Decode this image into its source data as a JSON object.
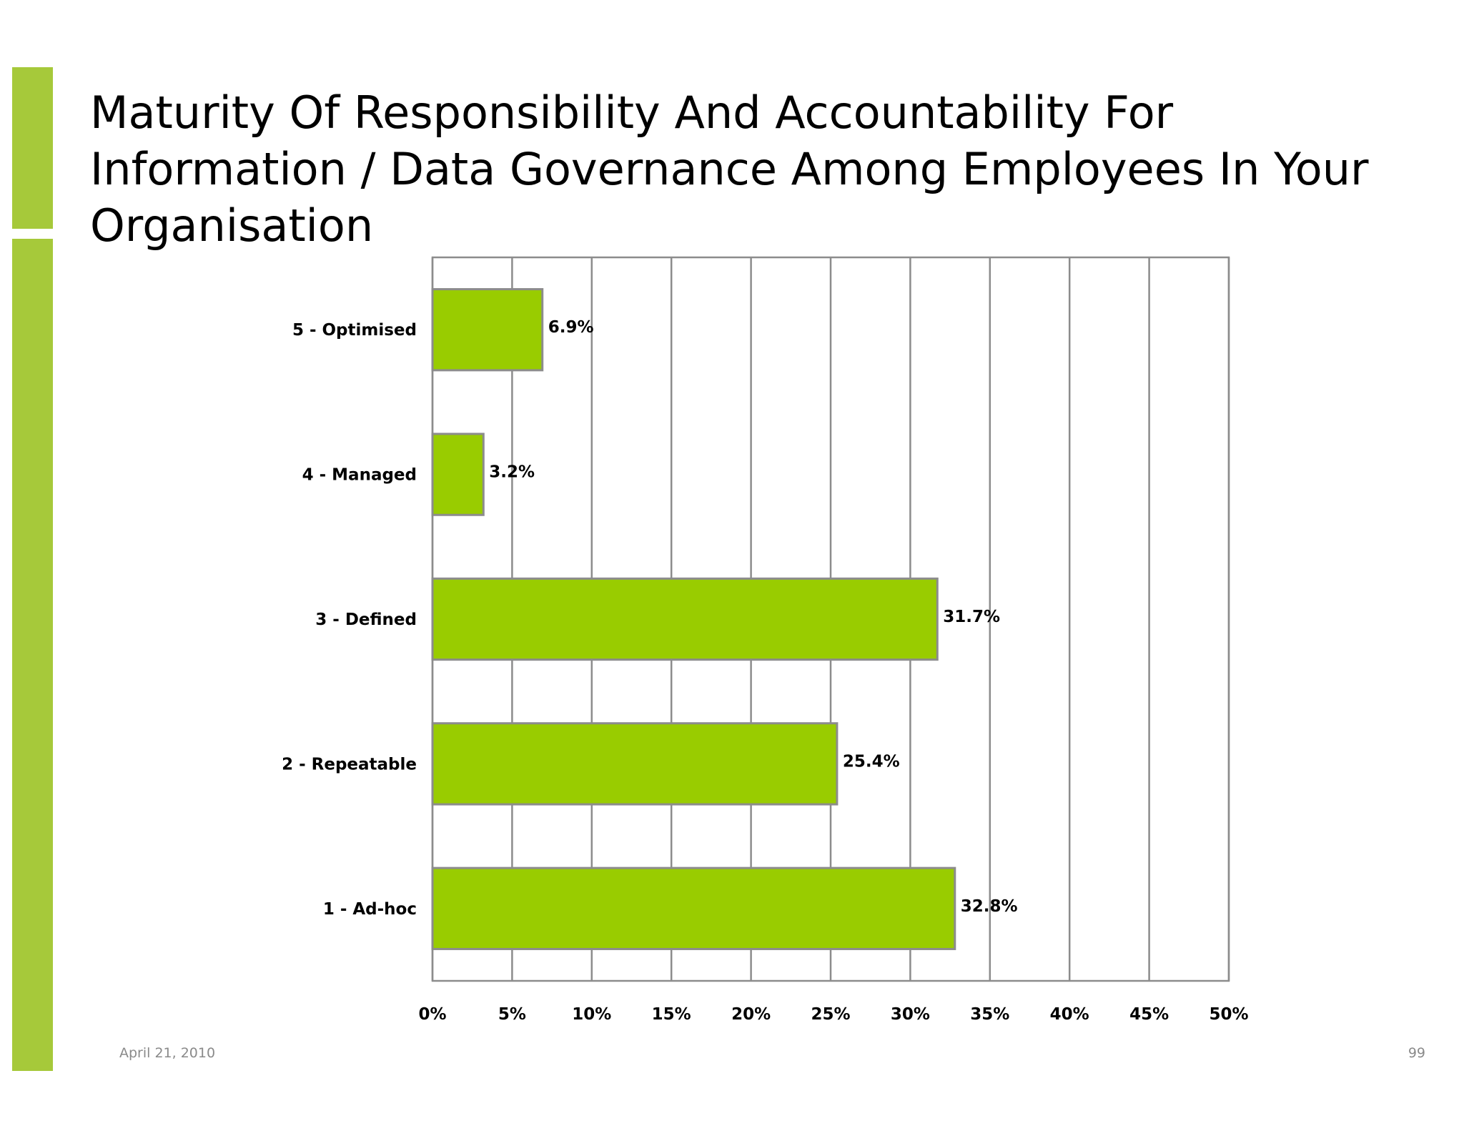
{
  "slide": {
    "title": "Maturity Of Responsibility And Accountability For Information / Data Governance Among Employees In Your Organisation",
    "date": "April 21, 2010",
    "page_number": "99",
    "accent_color": "#a6c93a"
  },
  "chart_data": {
    "type": "bar",
    "orientation": "horizontal",
    "title": "",
    "xlabel": "",
    "ylabel": "",
    "categories": [
      "5 - Optimised",
      "4 - Managed",
      "3 - Defined",
      "2 - Repeatable",
      "1 - Ad-hoc"
    ],
    "values": [
      6.9,
      3.2,
      31.7,
      25.4,
      32.8
    ],
    "data_labels": [
      "6.9%",
      "3.2%",
      "31.7%",
      "25.4%",
      "32.8%"
    ],
    "xlim": [
      0,
      50
    ],
    "x_ticks": [
      0,
      5,
      10,
      15,
      20,
      25,
      30,
      35,
      40,
      45,
      50
    ],
    "x_tick_labels": [
      "0%",
      "5%",
      "10%",
      "15%",
      "20%",
      "25%",
      "30%",
      "35%",
      "40%",
      "45%",
      "50%"
    ],
    "grid": true,
    "legend": "none",
    "bar_color": "#99cc00",
    "bar_border_color": "#8c8c8c",
    "grid_color": "#8c8c8c"
  }
}
